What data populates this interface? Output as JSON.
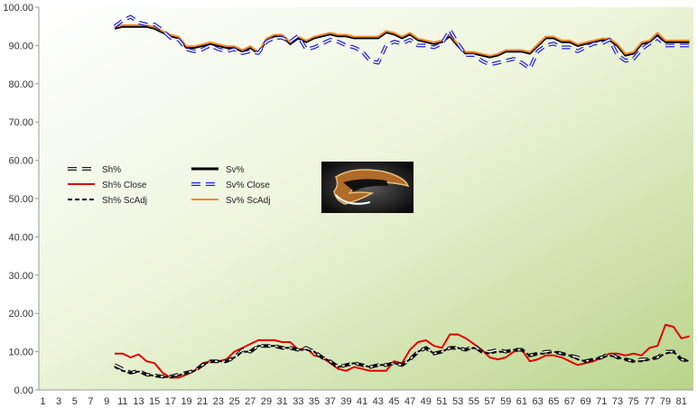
{
  "chart_data": {
    "type": "line",
    "title": "",
    "xlabel": "",
    "ylabel": "",
    "ylim": [
      0,
      100
    ],
    "xlim": [
      1,
      82
    ],
    "y_ticks": [
      "0.00",
      "10.00",
      "20.00",
      "30.00",
      "40.00",
      "50.00",
      "60.00",
      "70.00",
      "80.00",
      "90.00",
      "100.00"
    ],
    "x_ticks": [
      "1",
      "3",
      "5",
      "7",
      "9",
      "11",
      "13",
      "15",
      "17",
      "19",
      "21",
      "23",
      "25",
      "27",
      "29",
      "31",
      "33",
      "35",
      "37",
      "39",
      "41",
      "43",
      "45",
      "47",
      "49",
      "51",
      "53",
      "55",
      "57",
      "59",
      "61",
      "63",
      "65",
      "67",
      "69",
      "71",
      "73",
      "75",
      "77",
      "79",
      "81"
    ],
    "grid": false,
    "legend_position": "center-left",
    "background": "green-gradient",
    "logo": "anaheim-ducks-logo",
    "series": [
      {
        "name": "Sh%",
        "color": "#1a1a1a",
        "dash": "long-dash-outlined",
        "x": [
          10,
          11,
          12,
          13,
          14,
          15,
          16,
          17,
          18,
          19,
          20,
          21,
          22,
          23,
          24,
          25,
          26,
          27,
          28,
          29,
          30,
          31,
          32,
          33,
          34,
          35,
          36,
          37,
          38,
          39,
          40,
          41,
          42,
          43,
          44,
          45,
          46,
          47,
          48,
          49,
          50,
          51,
          52,
          53,
          54,
          55,
          56,
          57,
          58,
          59,
          60,
          61,
          62,
          63,
          64,
          65,
          66,
          67,
          68,
          69,
          70,
          71,
          72,
          73,
          74,
          75,
          76,
          77,
          78,
          79,
          80,
          81,
          82
        ],
        "values": [
          6.5,
          5.5,
          4.5,
          5.0,
          4.0,
          3.8,
          3.5,
          3.5,
          4.0,
          4.5,
          5.0,
          6.5,
          7.5,
          7.5,
          7.5,
          8.5,
          10.5,
          10.0,
          11.5,
          11.5,
          11.5,
          11.0,
          11.0,
          10.5,
          11.0,
          10.0,
          8.5,
          7.5,
          6.0,
          6.5,
          7.0,
          6.5,
          6.0,
          6.5,
          6.5,
          7.0,
          6.5,
          8.0,
          10.0,
          11.0,
          9.5,
          10.0,
          11.0,
          11.0,
          10.5,
          11.5,
          10.0,
          10.0,
          10.5,
          10.0,
          10.5,
          10.5,
          9.0,
          9.5,
          10.0,
          10.0,
          9.5,
          9.0,
          8.5,
          7.5,
          8.0,
          8.5,
          9.5,
          8.5,
          8.0,
          7.5,
          8.0,
          8.0,
          8.5,
          10.0,
          10.0,
          8.0,
          7.5
        ]
      },
      {
        "name": "Sh% Close",
        "color": "#e00000",
        "dash": "solid",
        "x": [
          10,
          11,
          12,
          13,
          14,
          15,
          16,
          17,
          18,
          19,
          20,
          21,
          22,
          23,
          24,
          25,
          26,
          27,
          28,
          29,
          30,
          31,
          32,
          33,
          34,
          35,
          36,
          37,
          38,
          39,
          40,
          41,
          42,
          43,
          44,
          45,
          46,
          47,
          48,
          49,
          50,
          51,
          52,
          53,
          54,
          55,
          56,
          57,
          58,
          59,
          60,
          61,
          62,
          63,
          64,
          65,
          66,
          67,
          68,
          69,
          70,
          71,
          72,
          73,
          74,
          75,
          76,
          77,
          78,
          79,
          80,
          81,
          82
        ],
        "values": [
          9.5,
          9.5,
          8.5,
          9.3,
          7.5,
          7.0,
          4.5,
          3.2,
          3.2,
          4.0,
          5.0,
          7.0,
          7.5,
          7.5,
          8.0,
          10.0,
          11.0,
          12.0,
          13.0,
          13.0,
          13.0,
          12.5,
          12.5,
          10.5,
          11.0,
          9.0,
          8.5,
          7.0,
          5.5,
          5.0,
          6.0,
          5.5,
          5.0,
          5.0,
          5.0,
          7.5,
          7.0,
          10.5,
          12.5,
          13.0,
          11.5,
          11.0,
          14.5,
          14.5,
          13.5,
          12.0,
          10.5,
          8.5,
          8.0,
          8.5,
          10.0,
          10.5,
          7.5,
          8.0,
          9.0,
          9.0,
          8.5,
          7.5,
          6.5,
          7.0,
          7.5,
          8.5,
          9.5,
          9.5,
          9.0,
          9.5,
          9.0,
          11.0,
          11.5,
          17.0,
          16.5,
          13.5,
          14.0
        ]
      },
      {
        "name": "Sh% ScAdj",
        "color": "#000000",
        "dash": "short-dash",
        "x": [
          10,
          11,
          12,
          13,
          14,
          15,
          16,
          17,
          18,
          19,
          20,
          21,
          22,
          23,
          24,
          25,
          26,
          27,
          28,
          29,
          30,
          31,
          32,
          33,
          34,
          35,
          36,
          37,
          38,
          39,
          40,
          41,
          42,
          43,
          44,
          45,
          46,
          47,
          48,
          49,
          50,
          51,
          52,
          53,
          54,
          55,
          56,
          57,
          58,
          59,
          60,
          61,
          62,
          63,
          64,
          65,
          66,
          67,
          68,
          69,
          70,
          71,
          72,
          73,
          74,
          75,
          76,
          77,
          78,
          79,
          80,
          81,
          82
        ],
        "values": [
          6.0,
          5.0,
          4.5,
          4.8,
          4.0,
          3.7,
          3.4,
          3.4,
          3.8,
          4.5,
          5.0,
          6.5,
          7.5,
          7.5,
          7.5,
          8.5,
          10.0,
          10.0,
          11.5,
          11.5,
          11.5,
          11.0,
          11.0,
          10.5,
          10.5,
          10.0,
          8.5,
          7.5,
          6.0,
          6.5,
          7.0,
          6.5,
          6.0,
          6.5,
          6.5,
          7.0,
          6.5,
          8.0,
          10.0,
          11.0,
          9.5,
          10.0,
          11.0,
          11.0,
          10.5,
          11.0,
          10.0,
          9.5,
          10.0,
          10.0,
          10.5,
          10.5,
          9.0,
          9.5,
          9.5,
          10.0,
          9.5,
          9.0,
          8.0,
          7.5,
          8.0,
          8.5,
          9.0,
          8.5,
          8.0,
          7.5,
          7.5,
          8.0,
          8.5,
          9.5,
          10.0,
          8.0,
          7.5
        ]
      },
      {
        "name": "Sv%",
        "color": "#000000",
        "dash": "solid-thick",
        "x": [
          10,
          11,
          12,
          13,
          14,
          15,
          16,
          17,
          18,
          19,
          20,
          21,
          22,
          23,
          24,
          25,
          26,
          27,
          28,
          29,
          30,
          31,
          32,
          33,
          34,
          35,
          36,
          37,
          38,
          39,
          40,
          41,
          42,
          43,
          44,
          45,
          46,
          47,
          48,
          49,
          50,
          51,
          52,
          53,
          54,
          55,
          56,
          57,
          58,
          59,
          60,
          61,
          62,
          63,
          64,
          65,
          66,
          67,
          68,
          69,
          70,
          71,
          72,
          73,
          74,
          75,
          76,
          77,
          78,
          79,
          80,
          81,
          82
        ],
        "values": [
          94.5,
          95.0,
          95.0,
          95.0,
          95.0,
          94.5,
          93.5,
          92.5,
          92.0,
          89.5,
          89.5,
          90.0,
          90.5,
          90.0,
          89.5,
          89.5,
          88.5,
          89.5,
          88.0,
          91.5,
          92.5,
          92.5,
          90.5,
          92.0,
          91.0,
          92.0,
          92.5,
          93.0,
          92.5,
          92.5,
          92.0,
          92.0,
          92.0,
          92.0,
          93.5,
          93.0,
          92.0,
          93.0,
          91.5,
          91.0,
          90.5,
          91.0,
          92.5,
          90.0,
          88.0,
          88.0,
          87.5,
          87.0,
          87.5,
          88.5,
          88.5,
          88.5,
          88.0,
          90.0,
          92.0,
          92.0,
          91.0,
          91.0,
          90.0,
          90.5,
          91.0,
          91.5,
          91.5,
          90.0,
          87.5,
          88.0,
          90.5,
          91.0,
          93.0,
          91.0,
          91.0,
          91.0,
          91.0
        ]
      },
      {
        "name": "Sv% Close",
        "color": "#1f1fd0",
        "dash": "long-dash-outlined",
        "x": [
          10,
          11,
          12,
          13,
          14,
          15,
          16,
          17,
          18,
          19,
          20,
          21,
          22,
          23,
          24,
          25,
          26,
          27,
          28,
          29,
          30,
          31,
          32,
          33,
          34,
          35,
          36,
          37,
          38,
          39,
          40,
          41,
          42,
          43,
          44,
          45,
          46,
          47,
          48,
          49,
          50,
          51,
          52,
          53,
          54,
          55,
          56,
          57,
          58,
          59,
          60,
          61,
          62,
          63,
          64,
          65,
          66,
          67,
          68,
          69,
          70,
          71,
          72,
          73,
          74,
          75,
          76,
          77,
          78,
          79,
          80,
          81,
          82
        ],
        "values": [
          95.0,
          96.5,
          97.5,
          96.0,
          95.5,
          95.5,
          94.0,
          92.0,
          91.5,
          89.0,
          88.5,
          89.0,
          90.0,
          89.0,
          88.5,
          89.0,
          88.0,
          88.5,
          88.0,
          91.0,
          92.0,
          92.0,
          91.0,
          92.5,
          89.0,
          89.5,
          90.5,
          91.5,
          91.0,
          90.0,
          89.5,
          88.5,
          86.0,
          85.5,
          90.0,
          91.0,
          90.5,
          91.5,
          90.0,
          90.0,
          89.5,
          90.5,
          94.0,
          90.5,
          87.5,
          87.5,
          86.0,
          85.0,
          85.5,
          86.0,
          86.5,
          85.5,
          84.0,
          88.5,
          90.0,
          90.5,
          89.5,
          89.5,
          88.5,
          89.5,
          90.5,
          90.5,
          91.5,
          87.5,
          86.0,
          86.5,
          89.0,
          90.5,
          92.0,
          90.0,
          90.0,
          90.0,
          90.0
        ]
      },
      {
        "name": "Sv% ScAdj",
        "color": "#f08a24",
        "dash": "solid",
        "x": [
          10,
          11,
          12,
          13,
          14,
          15,
          16,
          17,
          18,
          19,
          20,
          21,
          22,
          23,
          24,
          25,
          26,
          27,
          28,
          29,
          30,
          31,
          32,
          33,
          34,
          35,
          36,
          37,
          38,
          39,
          40,
          41,
          42,
          43,
          44,
          45,
          46,
          47,
          48,
          49,
          50,
          51,
          52,
          53,
          54,
          55,
          56,
          57,
          58,
          59,
          60,
          61,
          62,
          63,
          64,
          65,
          66,
          67,
          68,
          69,
          70,
          71,
          72,
          73,
          74,
          75,
          76,
          77,
          78,
          79,
          80,
          81,
          82
        ],
        "values": [
          94.8,
          95.3,
          95.3,
          95.3,
          95.3,
          94.8,
          93.8,
          92.8,
          92.3,
          89.8,
          89.8,
          90.3,
          90.8,
          90.3,
          89.8,
          89.8,
          88.8,
          89.8,
          88.3,
          91.8,
          92.8,
          92.8,
          90.8,
          92.3,
          91.3,
          92.3,
          92.8,
          93.3,
          92.8,
          92.8,
          92.3,
          92.3,
          92.3,
          92.3,
          93.8,
          93.3,
          92.3,
          93.3,
          91.8,
          91.3,
          90.8,
          91.3,
          92.8,
          90.3,
          88.3,
          88.3,
          87.8,
          87.3,
          87.8,
          88.8,
          88.8,
          88.8,
          88.3,
          90.3,
          92.3,
          92.3,
          91.3,
          91.3,
          90.3,
          90.8,
          91.3,
          91.8,
          91.8,
          90.3,
          87.8,
          88.3,
          90.8,
          91.3,
          93.3,
          91.3,
          91.3,
          91.3,
          91.3
        ]
      }
    ]
  }
}
